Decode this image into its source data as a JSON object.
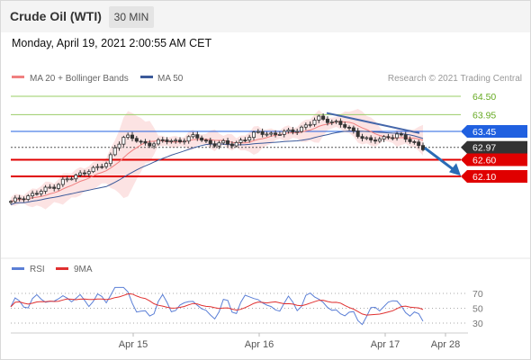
{
  "header": {
    "title": "Crude Oil (WTI)",
    "timeframe": "30 MIN"
  },
  "timestamp": "Monday, April 19, 2021 2:00:55 AM CET",
  "legend": {
    "ma20_label": "MA 20 + Bollinger Bands",
    "ma50_label": "MA 50",
    "credit": "Research © 2021 Trading Central",
    "rsi_label": "RSI",
    "ma9_label": "9MA"
  },
  "colors": {
    "ma20": "#f08080",
    "ma50": "#3c5a9a",
    "bollinger_fill": "#fbd9d9",
    "support": "#e00000",
    "resistance_blue": "#2060e0",
    "level_green": "#99cc66",
    "last_price": "#333333",
    "forecast_arrow": "#2a6bb5",
    "rsi": "#5b7fd6",
    "ma9": "#e03030"
  },
  "chart_data": {
    "type": "candlestick",
    "price_axis": {
      "min": 61.0,
      "max": 65.0
    },
    "x_tick_labels": [
      "Apr 15",
      "Apr 16",
      "Apr 17",
      "Apr 28"
    ],
    "levels": [
      {
        "label": "64.50",
        "value": 64.5,
        "kind": "resistance"
      },
      {
        "label": "63.95",
        "value": 63.95,
        "kind": "resistance"
      },
      {
        "label": "63.45",
        "value": 63.45,
        "kind": "pivot"
      },
      {
        "label": "62.97",
        "value": 62.97,
        "kind": "last"
      },
      {
        "label": "62.60",
        "value": 62.6,
        "kind": "support"
      },
      {
        "label": "62.10",
        "value": 62.1,
        "kind": "support"
      }
    ],
    "price_path": [
      61.32,
      61.45,
      61.52,
      61.6,
      61.72,
      61.82,
      61.98,
      62.05,
      62.18,
      62.32,
      62.35,
      62.5,
      63.05,
      63.3,
      63.22,
      63.1,
      63.08,
      63.14,
      63.18,
      63.16,
      63.22,
      63.3,
      63.2,
      63.05,
      63.1,
      63.05,
      63.15,
      63.25,
      63.4,
      63.42,
      63.35,
      63.4,
      63.45,
      63.55,
      63.65,
      63.85,
      63.8,
      63.72,
      63.6,
      63.45,
      63.3,
      63.15,
      63.2,
      63.3,
      63.35,
      63.22,
      63.1,
      62.97
    ],
    "rsi_axis": {
      "min": 20,
      "max": 80,
      "ticks": [
        70,
        50,
        30
      ]
    }
  }
}
